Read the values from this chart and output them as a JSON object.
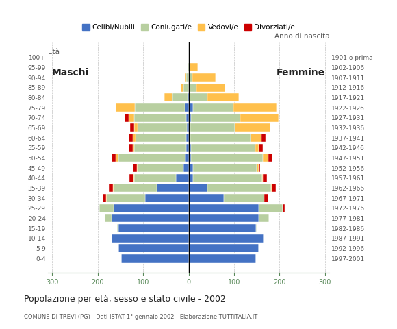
{
  "age_groups": [
    "100+",
    "95-99",
    "90-94",
    "85-89",
    "80-84",
    "75-79",
    "70-74",
    "65-69",
    "60-64",
    "55-59",
    "50-54",
    "45-49",
    "40-44",
    "35-39",
    "30-34",
    "25-29",
    "20-24",
    "15-19",
    "10-14",
    "5-9",
    "0-4"
  ],
  "birth_years": [
    "1901 o prima",
    "1902-1906",
    "1907-1911",
    "1912-1916",
    "1917-1921",
    "1922-1926",
    "1927-1931",
    "1932-1936",
    "1937-1941",
    "1942-1946",
    "1947-1951",
    "1952-1956",
    "1957-1961",
    "1962-1966",
    "1967-1971",
    "1972-1976",
    "1977-1981",
    "1982-1986",
    "1987-1991",
    "1992-1996",
    "1997-2001"
  ],
  "male": {
    "celibi": [
      0,
      0,
      0,
      0,
      3,
      8,
      5,
      4,
      5,
      5,
      7,
      12,
      28,
      70,
      95,
      165,
      170,
      155,
      170,
      155,
      148
    ],
    "coniugati": [
      0,
      2,
      6,
      12,
      32,
      110,
      115,
      108,
      112,
      115,
      148,
      100,
      92,
      95,
      85,
      32,
      15,
      2,
      0,
      0,
      0
    ],
    "vedovi": [
      0,
      0,
      2,
      5,
      18,
      42,
      12,
      8,
      6,
      3,
      5,
      2,
      1,
      1,
      1,
      0,
      0,
      0,
      0,
      0,
      0
    ],
    "divorziati": [
      0,
      0,
      0,
      0,
      0,
      0,
      9,
      9,
      9,
      8,
      9,
      8,
      9,
      9,
      8,
      0,
      0,
      0,
      0,
      0,
      0
    ]
  },
  "female": {
    "nubili": [
      0,
      0,
      0,
      0,
      2,
      10,
      5,
      4,
      4,
      5,
      5,
      10,
      10,
      42,
      78,
      155,
      155,
      148,
      165,
      155,
      148
    ],
    "coniugate": [
      0,
      2,
      8,
      18,
      40,
      88,
      108,
      98,
      132,
      142,
      158,
      140,
      152,
      140,
      88,
      52,
      22,
      2,
      0,
      0,
      0
    ],
    "vedove": [
      2,
      18,
      52,
      62,
      68,
      95,
      85,
      78,
      25,
      8,
      12,
      5,
      2,
      1,
      1,
      0,
      0,
      0,
      0,
      0,
      0
    ],
    "divorziate": [
      0,
      0,
      0,
      0,
      0,
      0,
      0,
      0,
      8,
      8,
      9,
      2,
      9,
      9,
      9,
      4,
      0,
      0,
      0,
      0,
      0
    ]
  },
  "colors": {
    "celibi_nubili": "#4472c4",
    "coniugati": "#b8cfa0",
    "vedovi": "#ffc04c",
    "divorziati": "#cc0000"
  },
  "title": "Popolazione per età, sesso e stato civile - 2002",
  "subtitle": "COMUNE DI TREVI (PG) - Dati ISTAT 1° gennaio 2002 - Elaborazione TUTTITALIA.IT",
  "xlabel_left": "Maschi",
  "xlabel_right": "Femmine",
  "ylabel_left": "Età",
  "ylabel_right": "Anno di nascita",
  "xlim": 310,
  "xticks": [
    -300,
    -200,
    -100,
    0,
    100,
    200,
    300
  ],
  "legend_labels": [
    "Celibi/Nubili",
    "Coniugati/e",
    "Vedovi/e",
    "Divorziati/e"
  ],
  "background_color": "#ffffff",
  "grid_color": "#aaaaaa",
  "axis_color": "#5a8a5a",
  "bar_height": 0.82
}
